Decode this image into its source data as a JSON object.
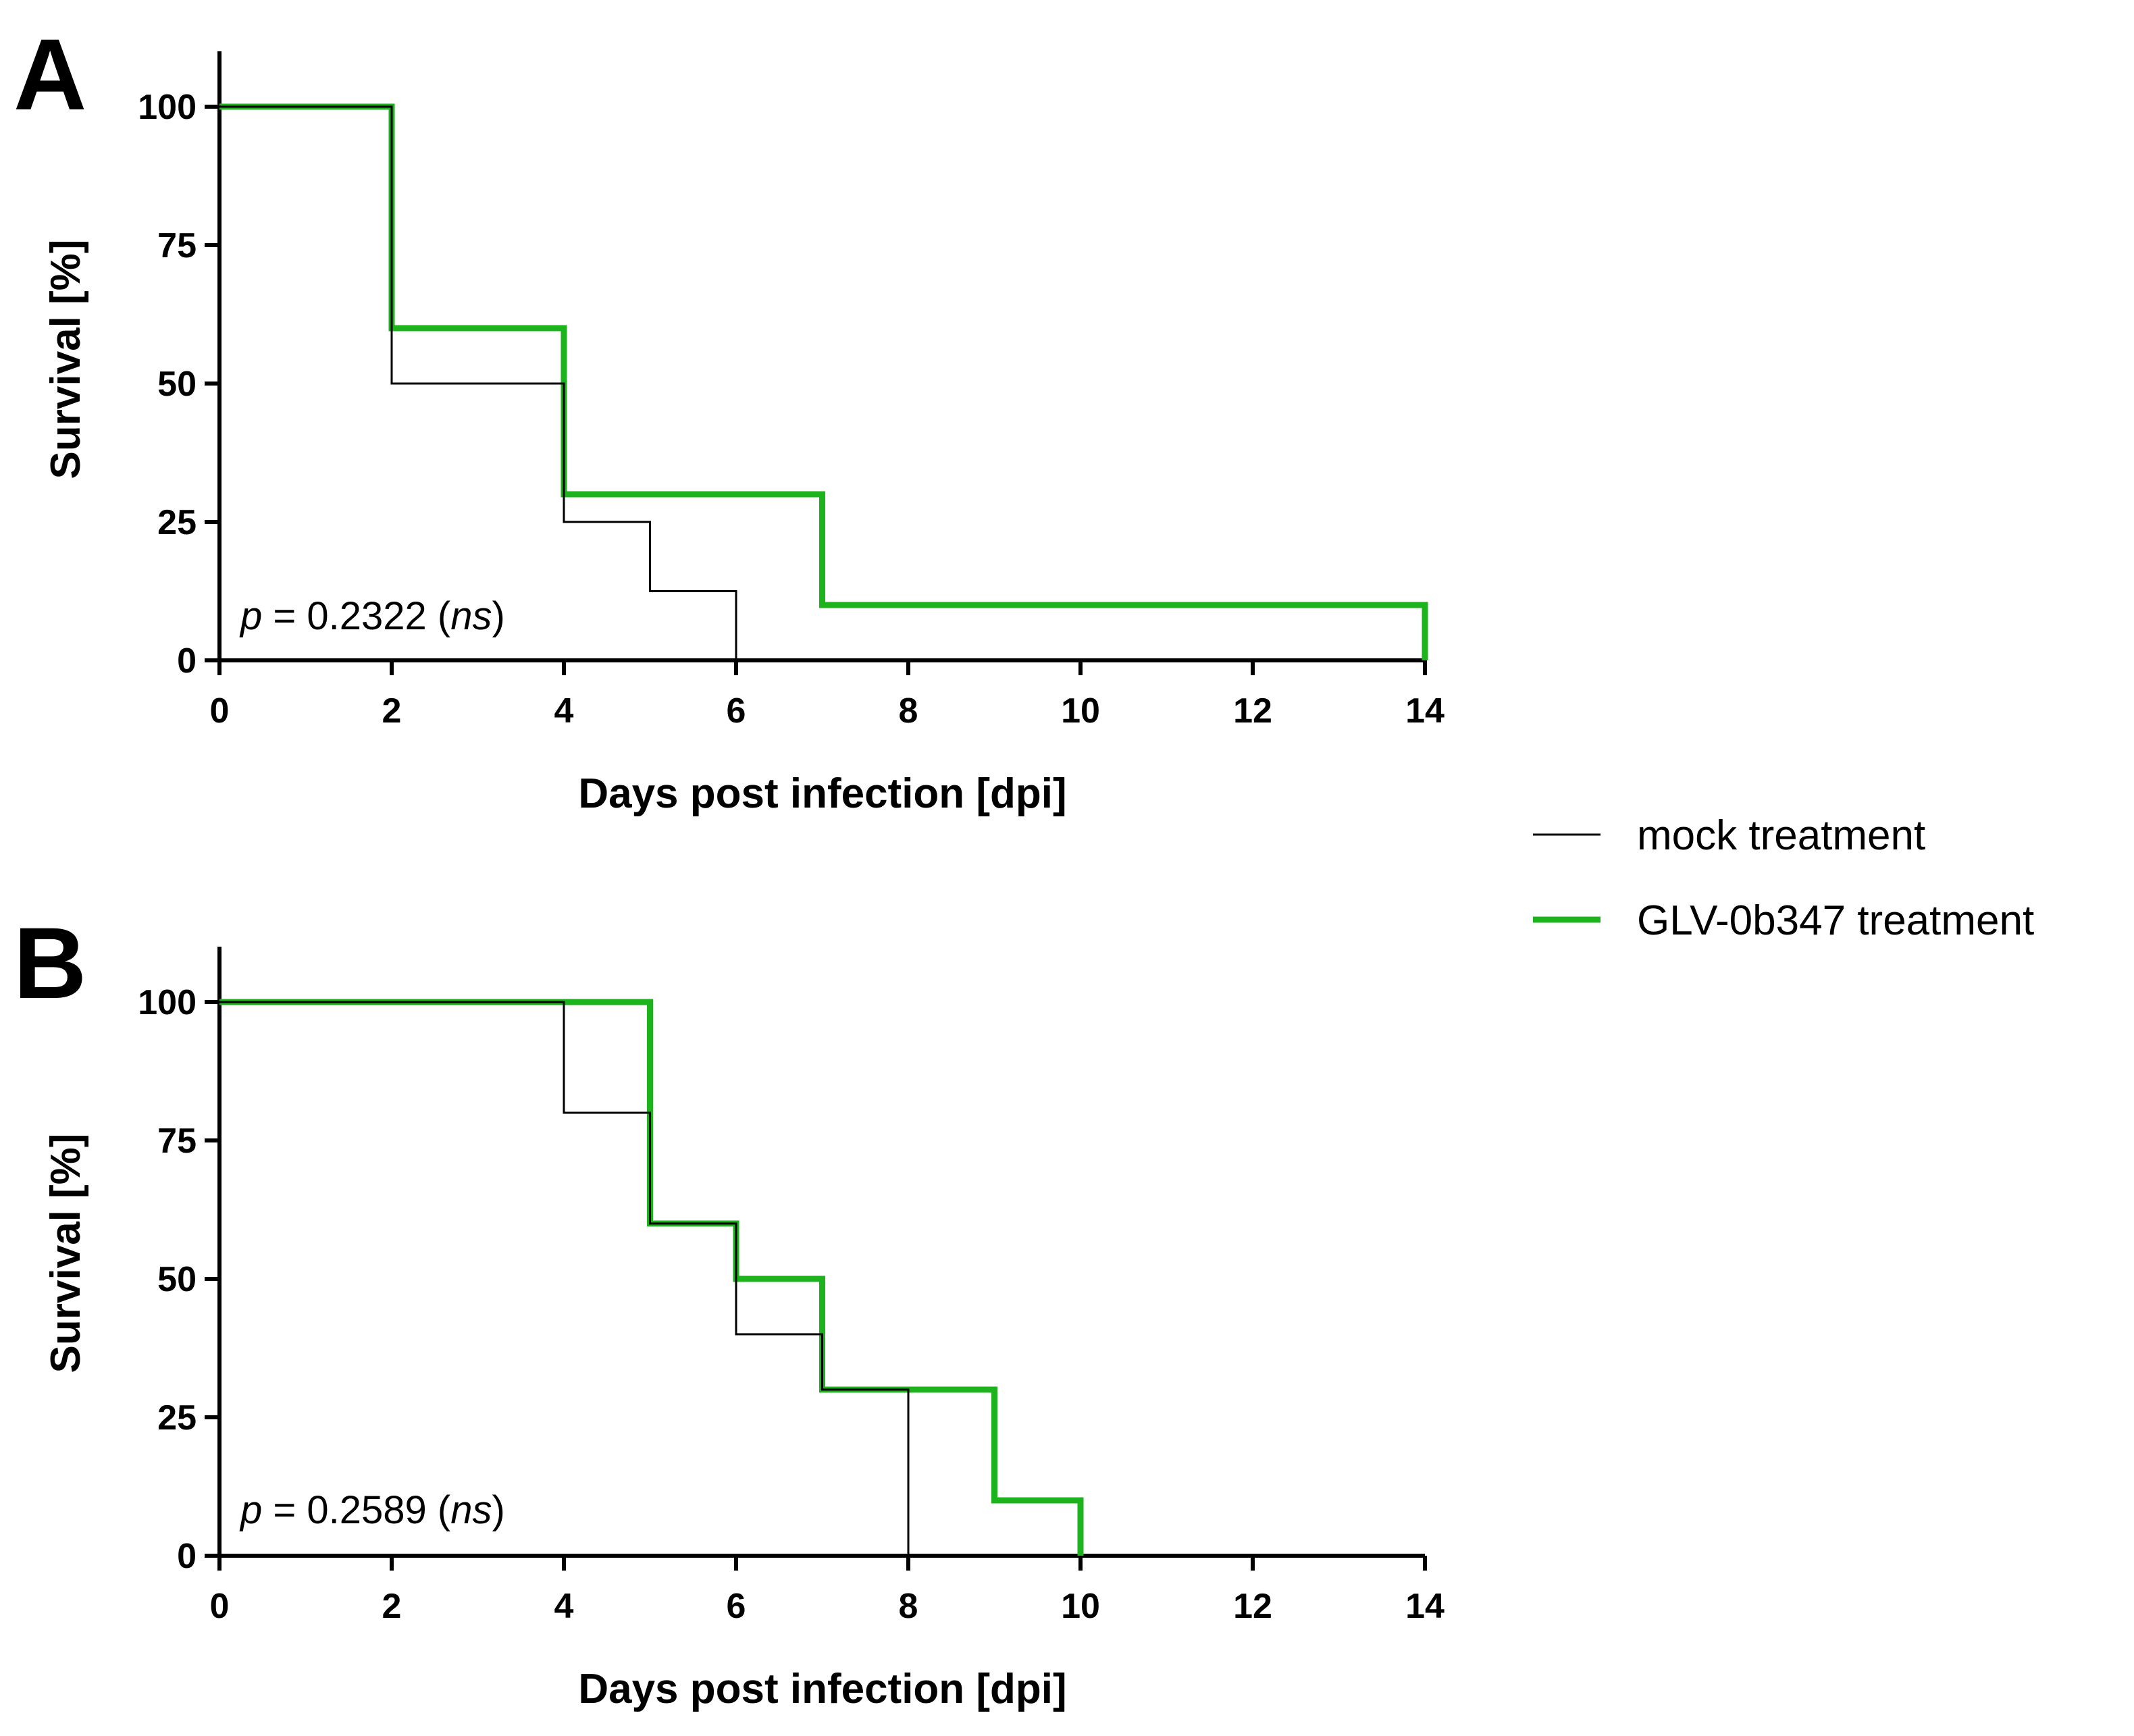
{
  "colors": {
    "mock": "#000000",
    "glv": "#1db31d",
    "axis": "#000000",
    "background": "#ffffff"
  },
  "legend": {
    "items": [
      {
        "key": "mock",
        "label": "mock treatment"
      },
      {
        "key": "glv",
        "label": "GLV-0b347 treatment"
      }
    ]
  },
  "chart_data": [
    {
      "panel": "A",
      "type": "line",
      "style": "step (Kaplan-Meier survival)",
      "xlabel": "Days post infection [dpi]",
      "ylabel": "Survival [%]",
      "xlim": [
        0,
        14
      ],
      "ylim": [
        0,
        110
      ],
      "xticks": [
        0,
        2,
        4,
        6,
        8,
        10,
        12,
        14
      ],
      "yticks": [
        0,
        25,
        50,
        75,
        100
      ],
      "annotation": {
        "p_symbol": "p",
        "p_value": " = 0.2322 ",
        "significance": "ns"
      },
      "series": [
        {
          "key": "mock",
          "name": "mock treatment",
          "x": [
            0,
            2,
            4,
            5,
            6
          ],
          "y": [
            100,
            50,
            25,
            12.5,
            0
          ]
        },
        {
          "key": "glv",
          "name": "GLV-0b347 treatment",
          "x": [
            0,
            2,
            4,
            7,
            14
          ],
          "y": [
            100,
            60,
            30,
            10,
            0
          ]
        }
      ]
    },
    {
      "panel": "B",
      "type": "line",
      "style": "step (Kaplan-Meier survival)",
      "xlabel": "Days post infection [dpi]",
      "ylabel": "Survival [%]",
      "xlim": [
        0,
        14
      ],
      "ylim": [
        0,
        110
      ],
      "xticks": [
        0,
        2,
        4,
        6,
        8,
        10,
        12,
        14
      ],
      "yticks": [
        0,
        25,
        50,
        75,
        100
      ],
      "annotation": {
        "p_symbol": "p",
        "p_value": " = 0.2589 ",
        "significance": "ns"
      },
      "series": [
        {
          "key": "mock",
          "name": "mock treatment",
          "x": [
            0,
            4,
            5,
            6,
            7,
            8
          ],
          "y": [
            100,
            80,
            60,
            40,
            30,
            0
          ]
        },
        {
          "key": "glv",
          "name": "GLV-0b347 treatment",
          "x": [
            0,
            5,
            6,
            7,
            9,
            10
          ],
          "y": [
            100,
            60,
            50,
            30,
            10,
            0
          ]
        }
      ]
    }
  ]
}
